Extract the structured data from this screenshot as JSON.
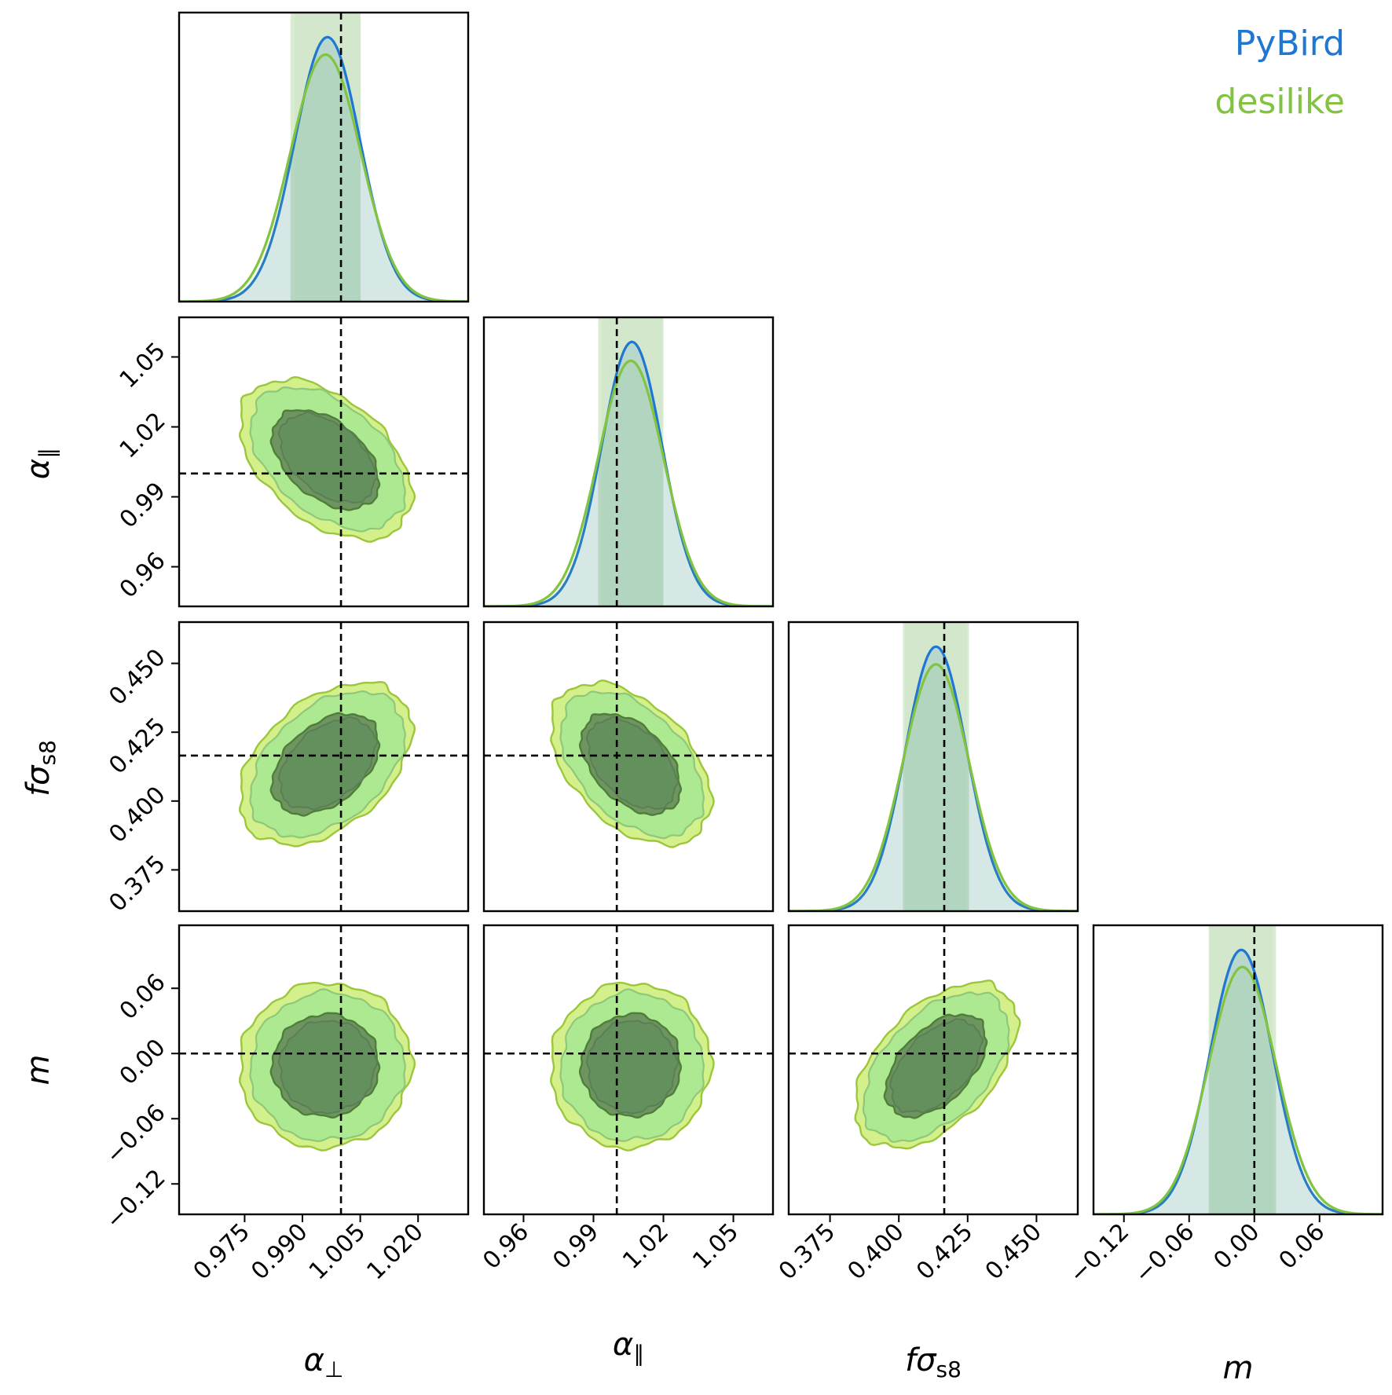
{
  "chart_data": {
    "type": "corner",
    "parameters": [
      {
        "key": "alpha_perp",
        "label": "α",
        "sub": "⊥",
        "lim": [
          0.958,
          1.033
        ],
        "ticks": [
          0.975,
          0.99,
          1.005,
          1.02
        ],
        "tick_labels": [
          "0.975",
          "0.990",
          "1.005",
          "1.020"
        ],
        "truth": 1.0
      },
      {
        "key": "alpha_par",
        "label": "α",
        "sub": "∥",
        "lim": [
          0.943,
          1.067
        ],
        "ticks": [
          0.96,
          0.99,
          1.02,
          1.05
        ],
        "tick_labels": [
          "0.96",
          "0.99",
          "1.02",
          "1.05"
        ],
        "truth": 1.0
      },
      {
        "key": "fsigma_s8",
        "label": "fσ",
        "sub": "s8",
        "lim": [
          0.36,
          0.465
        ],
        "ticks": [
          0.375,
          0.4,
          0.425,
          0.45
        ],
        "tick_labels": [
          "0.375",
          "0.400",
          "0.425",
          "0.450"
        ],
        "truth": 0.4165
      },
      {
        "key": "m",
        "label": "m",
        "sub": "",
        "lim": [
          -0.148,
          0.118
        ],
        "ticks": [
          -0.12,
          -0.06,
          0.0,
          0.06
        ],
        "tick_labels": [
          "−0.12",
          "−0.06",
          "0.00",
          "0.06"
        ],
        "truth": 0.0
      }
    ],
    "series": [
      {
        "name": "PyBird",
        "color": "#1f77d2",
        "mean": [
          0.9965,
          1.0065,
          0.4135,
          -0.012
        ],
        "sigma": [
          0.0085,
          0.013,
          0.0112,
          0.029
        ],
        "corr": [
          [
            1,
            -0.45,
            0.42,
            0.02
          ],
          [
            -0.45,
            1,
            -0.45,
            0.02
          ],
          [
            0.42,
            -0.45,
            1,
            0.5
          ],
          [
            0.02,
            0.02,
            0.5,
            1
          ]
        ]
      },
      {
        "name": "desilike",
        "color": "#82c341",
        "mean": [
          0.996,
          1.006,
          0.4135,
          -0.011
        ],
        "sigma": [
          0.0091,
          0.014,
          0.012,
          0.031
        ],
        "corr": [
          [
            1,
            -0.45,
            0.42,
            0.02
          ],
          [
            -0.45,
            1,
            -0.45,
            0.02
          ],
          [
            0.42,
            -0.45,
            1,
            0.5
          ],
          [
            0.02,
            0.02,
            0.5,
            1
          ]
        ]
      }
    ],
    "contour_levels": [
      "68%",
      "95%"
    ],
    "legend_placement": "top-right",
    "grid": false,
    "style": {
      "outer_fill": "#a8e890",
      "outer_fill_desilike": "#d4f08a",
      "inner_fill": "#628f5c",
      "band_fill": "#c4ded4"
    }
  }
}
